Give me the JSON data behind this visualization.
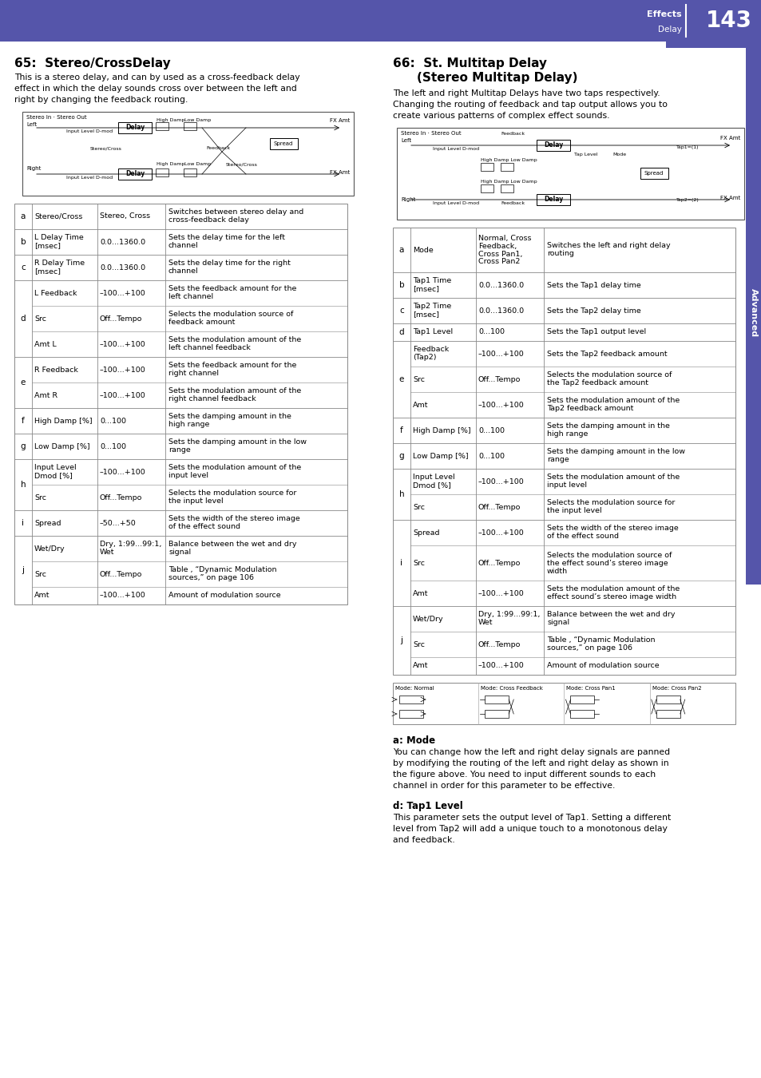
{
  "page_bg": "#ffffff",
  "header_bg": "#5555aa",
  "header_text_color": "#ffffff",
  "header_label": "Effects",
  "header_sublabel": "Delay",
  "header_page_num": "143",
  "tab_bg": "#5555aa",
  "tab_text": "Advanced",
  "left_title": "65:  Stereo/CrossDelay",
  "left_intro": "This is a stereo delay, and can by used as a cross-feedback delay\neffect in which the delay sounds cross over between the left and\nright by changing the feedback routing.",
  "left_table": [
    [
      "a",
      "Stereo/Cross",
      "Stereo, Cross",
      "Switches between stereo delay and\ncross-feedback delay"
    ],
    [
      "b",
      "L Delay Time\n[msec]",
      "0.0...1360.0",
      "Sets the delay time for the left\nchannel"
    ],
    [
      "c",
      "R Delay Time\n[msec]",
      "0.0...1360.0",
      "Sets the delay time for the right\nchannel"
    ],
    [
      "d",
      "L Feedback",
      "–100...+100",
      "Sets the feedback amount for the\nleft channel"
    ],
    [
      "d",
      "Src",
      "Off...Tempo",
      "Selects the modulation source of\nfeedback amount"
    ],
    [
      "d",
      "Amt L",
      "–100...+100",
      "Sets the modulation amount of the\nleft channel feedback"
    ],
    [
      "e",
      "R Feedback",
      "–100...+100",
      "Sets the feedback amount for the\nright channel"
    ],
    [
      "e",
      "Amt R",
      "–100...+100",
      "Sets the modulation amount of the\nright channel feedback"
    ],
    [
      "f",
      "High Damp [%]",
      "0...100",
      "Sets the damping amount in the\nhigh range"
    ],
    [
      "g",
      "Low Damp [%]",
      "0...100",
      "Sets the damping amount in the low\nrange"
    ],
    [
      "h",
      "Input Level\nDmod [%]",
      "–100...+100",
      "Sets the modulation amount of the\ninput level"
    ],
    [
      "h",
      "Src",
      "Off...Tempo",
      "Selects the modulation source for\nthe input level"
    ],
    [
      "i",
      "Spread",
      "–50...+50",
      "Sets the width of the stereo image\nof the effect sound"
    ],
    [
      "j",
      "Wet/Dry",
      "Dry, 1:99...99:1,\nWet",
      "Balance between the wet and dry\nsignal"
    ],
    [
      "j",
      "Src",
      "Off...Tempo",
      "Table , “Dynamic Modulation\nsources,” on page 106"
    ],
    [
      "j",
      "Amt",
      "–100...+100",
      "Amount of modulation source"
    ]
  ],
  "right_title1": "66:  St. Multitap Delay",
  "right_title2": "(Stereo Multitap Delay)",
  "right_intro": "The left and right Multitap Delays have two taps respectively.\nChanging the routing of feedback and tap output allows you to\ncreate various patterns of complex effect sounds.",
  "right_table": [
    [
      "a",
      "Mode",
      "Normal, Cross\nFeedback,\nCross Pan1,\nCross Pan2",
      "Switches the left and right delay\nrouting"
    ],
    [
      "b",
      "Tap1 Time\n[msec]",
      "0.0...1360.0",
      "Sets the Tap1 delay time"
    ],
    [
      "c",
      "Tap2 Time\n[msec]",
      "0.0...1360.0",
      "Sets the Tap2 delay time"
    ],
    [
      "d",
      "Tap1 Level",
      "0...100",
      "Sets the Tap1 output level"
    ],
    [
      "e",
      "Feedback\n(Tap2)",
      "–100...+100",
      "Sets the Tap2 feedback amount"
    ],
    [
      "e",
      "Src",
      "Off...Tempo",
      "Selects the modulation source of\nthe Tap2 feedback amount"
    ],
    [
      "e",
      "Amt",
      "–100...+100",
      "Sets the modulation amount of the\nTap2 feedback amount"
    ],
    [
      "f",
      "High Damp [%]",
      "0...100",
      "Sets the damping amount in the\nhigh range"
    ],
    [
      "g",
      "Low Damp [%]",
      "0...100",
      "Sets the damping amount in the low\nrange"
    ],
    [
      "h",
      "Input Level\nDmod [%]",
      "–100...+100",
      "Sets the modulation amount of the\ninput level"
    ],
    [
      "h",
      "Src",
      "Off...Tempo",
      "Selects the modulation source for\nthe input level"
    ],
    [
      "i",
      "Spread",
      "–100...+100",
      "Sets the width of the stereo image\nof the effect sound"
    ],
    [
      "i",
      "Src",
      "Off...Tempo",
      "Selects the modulation source of\nthe effect sound’s stereo image\nwidth"
    ],
    [
      "i",
      "Amt",
      "–100...+100",
      "Sets the modulation amount of the\neffect sound’s stereo image width"
    ],
    [
      "j",
      "Wet/Dry",
      "Dry, 1:99...99:1,\nWet",
      "Balance between the wet and dry\nsignal"
    ],
    [
      "j",
      "Src",
      "Off...Tempo",
      "Table , “Dynamic Modulation\nsources,” on page 106"
    ],
    [
      "j",
      "Amt",
      "–100...+100",
      "Amount of modulation source"
    ]
  ],
  "right_section_a_title": "a: Mode",
  "right_section_a_text": "You can change how the left and right delay signals are panned\nby modifying the routing of the left and right delay as shown in\nthe figure above. You need to input different sounds to each\nchannel in order for this parameter to be effective.",
  "right_section_d_title": "d: Tap1 Level",
  "right_section_d_text": "This parameter sets the output level of Tap1. Setting a different\nlevel from Tap2 will add a unique touch to a monotonous delay\nand feedback."
}
